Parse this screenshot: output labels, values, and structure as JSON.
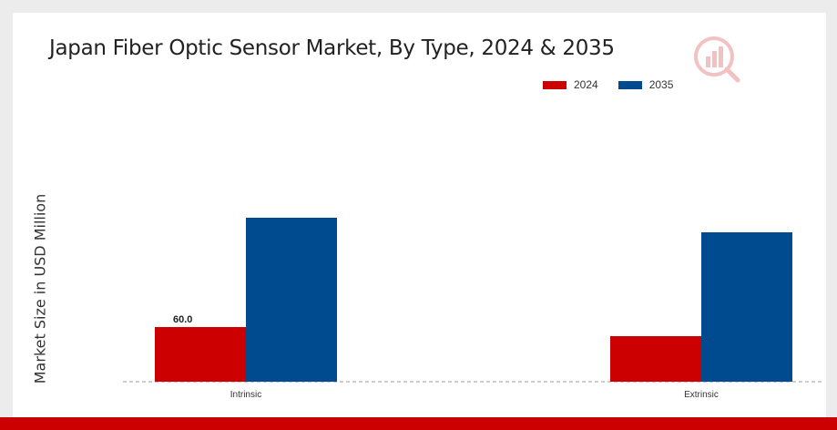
{
  "chart_data": {
    "type": "bar",
    "title": "Japan Fiber Optic Sensor Market, By Type, 2024 & 2035",
    "ylabel": "Market Size in USD Million",
    "xlabel": "",
    "categories": [
      "Intrinsic",
      "Extrinsic"
    ],
    "series": [
      {
        "name": "2024",
        "color": "#cc0000",
        "values": [
          60.0,
          50.0
        ]
      },
      {
        "name": "2035",
        "color": "#004a8f",
        "values": [
          180.0,
          164.0
        ]
      }
    ],
    "data_labels": [
      {
        "series": "2024",
        "category": "Intrinsic",
        "text": "60.0"
      }
    ],
    "ylim": [
      0,
      240
    ],
    "grid": false,
    "legend_position": "top-right",
    "baseline_style": "dashed"
  },
  "logo_icon": "market-research-logo-icon"
}
